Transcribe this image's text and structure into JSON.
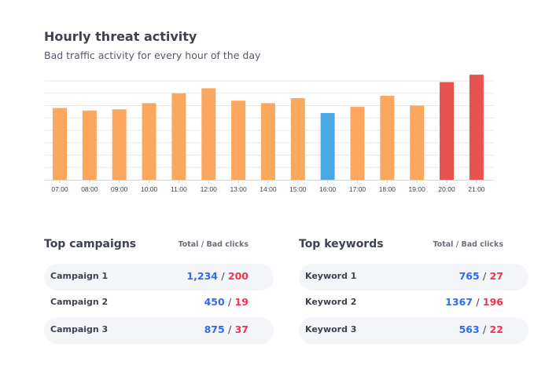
{
  "header": {
    "title": "Hourly threat activity",
    "subtitle": "Bad traffic activity for every hour of the day"
  },
  "chart_data": {
    "type": "bar",
    "title": "Hourly threat activity",
    "subtitle": "Bad traffic activity for every hour of the day",
    "categories": [
      "07:00",
      "08:00",
      "09:00",
      "10:00",
      "11:00",
      "12:00",
      "13:00",
      "14:00",
      "15:00",
      "16:00",
      "17:00",
      "18:00",
      "19:00",
      "20:00",
      "21:00"
    ],
    "values": [
      5.8,
      5.6,
      5.7,
      6.2,
      7.0,
      7.4,
      6.4,
      6.2,
      6.6,
      5.4,
      5.9,
      6.8,
      6.0,
      7.9,
      8.5
    ],
    "colors": [
      "#fba75e",
      "#fba75e",
      "#fba75e",
      "#fba75e",
      "#fba75e",
      "#fba75e",
      "#fba75e",
      "#fba75e",
      "#fba75e",
      "#4aa9e2",
      "#fba75e",
      "#fba75e",
      "#fba75e",
      "#e8524f",
      "#e8524f"
    ],
    "ylim": [
      0,
      8.6
    ],
    "grid": true,
    "y_tick_labels": false,
    "xlabel": "",
    "ylabel": ""
  },
  "campaigns": {
    "title": "Top campaigns",
    "column": "Total / Bad clicks",
    "rows": [
      {
        "name": "Campaign 1",
        "total": "1,234",
        "bad": "200"
      },
      {
        "name": "Campaign 2",
        "total": "450",
        "bad": "19"
      },
      {
        "name": "Campaign 3",
        "total": "875",
        "bad": "37"
      }
    ]
  },
  "keywords": {
    "title": "Top keywords",
    "column": "Total / Bad clicks",
    "rows": [
      {
        "name": "Keyword 1",
        "total": "765",
        "bad": "27"
      },
      {
        "name": "Keyword 2",
        "total": "1367",
        "bad": "196"
      },
      {
        "name": "Keyword 3",
        "total": "563",
        "bad": "22"
      }
    ]
  },
  "separator": "/"
}
